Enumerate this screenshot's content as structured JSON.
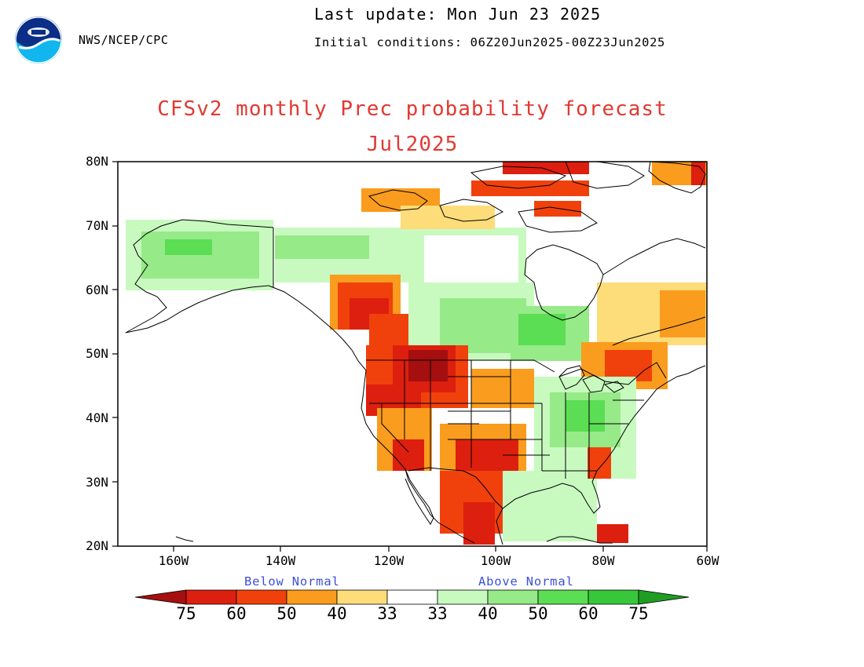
{
  "header": {
    "agency": "NWS/NCEP/CPC",
    "last_update": "Last update: Mon Jun 23 2025",
    "initial_conditions": "Initial conditions: 06Z20Jun2025-00Z23Jun2025"
  },
  "title": "CFSv2 monthly Prec probability forecast",
  "subtitle": "Jul2025",
  "axes": {
    "lat_labels": [
      "80N",
      "70N",
      "60N",
      "50N",
      "40N",
      "30N",
      "20N"
    ],
    "lon_labels": [
      "160W",
      "140W",
      "120W",
      "100W",
      "80W",
      "60W"
    ]
  },
  "legend": {
    "below_caption": "Below Normal",
    "above_caption": "Above Normal",
    "values": [
      "75",
      "60",
      "50",
      "40",
      "33",
      "33",
      "40",
      "50",
      "60",
      "75"
    ],
    "colors": {
      "below_75": "#a50f0f",
      "below_60": "#dd1f0f",
      "below_50": "#f0410c",
      "below_40": "#fa9c1e",
      "below_33": "#fddc7a",
      "normal": "#ffffff",
      "above_33": "#c8fac0",
      "above_40": "#96ea88",
      "above_50": "#5bdd54",
      "above_60": "#38c73a",
      "above_75": "#1f9e23"
    }
  }
}
